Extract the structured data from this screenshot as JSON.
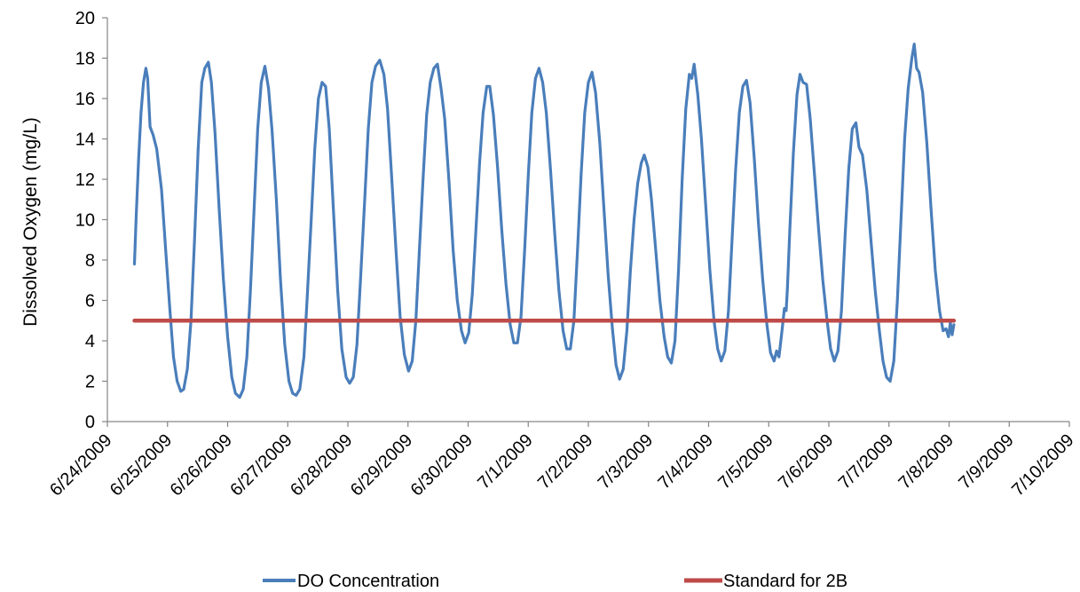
{
  "chart_data": {
    "type": "line",
    "title": "",
    "xlabel": "",
    "ylabel": "Dissolved Oxygen (mg/L)",
    "ylim": [
      0,
      20
    ],
    "y_ticks": [
      0,
      2,
      4,
      6,
      8,
      10,
      12,
      14,
      16,
      18,
      20
    ],
    "x_tick_labels": [
      "6/24/2009",
      "6/25/2009",
      "6/26/2009",
      "6/27/2009",
      "6/28/2009",
      "6/29/2009",
      "6/30/2009",
      "7/1/2009",
      "7/2/2009",
      "7/3/2009",
      "7/4/2009",
      "7/5/2009",
      "7/6/2009",
      "7/7/2009",
      "7/8/2009",
      "7/9/2009",
      "7/10/2009"
    ],
    "legend_position": "bottom",
    "series": [
      {
        "name": "DO Concentration",
        "color": "#4a7ebb",
        "x_unit": "days after 6/24/2009 00:00",
        "points": [
          [
            0.45,
            7.8
          ],
          [
            0.48,
            10.2
          ],
          [
            0.52,
            13.0
          ],
          [
            0.56,
            15.3
          ],
          [
            0.6,
            16.8
          ],
          [
            0.64,
            17.5
          ],
          [
            0.67,
            17.0
          ],
          [
            0.71,
            14.6
          ],
          [
            0.76,
            14.2
          ],
          [
            0.82,
            13.5
          ],
          [
            0.9,
            11.5
          ],
          [
            0.97,
            8.5
          ],
          [
            1.04,
            5.5
          ],
          [
            1.1,
            3.2
          ],
          [
            1.16,
            2.0
          ],
          [
            1.22,
            1.5
          ],
          [
            1.27,
            1.6
          ],
          [
            1.33,
            2.6
          ],
          [
            1.39,
            5.0
          ],
          [
            1.45,
            9.0
          ],
          [
            1.51,
            13.5
          ],
          [
            1.57,
            16.8
          ],
          [
            1.62,
            17.5
          ],
          [
            1.68,
            17.8
          ],
          [
            1.73,
            16.8
          ],
          [
            1.79,
            14.3
          ],
          [
            1.86,
            10.5
          ],
          [
            1.93,
            7.0
          ],
          [
            2.0,
            4.2
          ],
          [
            2.07,
            2.2
          ],
          [
            2.13,
            1.4
          ],
          [
            2.2,
            1.2
          ],
          [
            2.26,
            1.6
          ],
          [
            2.32,
            3.2
          ],
          [
            2.38,
            6.5
          ],
          [
            2.44,
            10.5
          ],
          [
            2.5,
            14.5
          ],
          [
            2.56,
            16.8
          ],
          [
            2.62,
            17.6
          ],
          [
            2.68,
            16.5
          ],
          [
            2.74,
            14.4
          ],
          [
            2.81,
            11.0
          ],
          [
            2.88,
            7.0
          ],
          [
            2.95,
            3.8
          ],
          [
            3.02,
            2.0
          ],
          [
            3.08,
            1.4
          ],
          [
            3.14,
            1.3
          ],
          [
            3.2,
            1.6
          ],
          [
            3.27,
            3.2
          ],
          [
            3.33,
            6.5
          ],
          [
            3.39,
            10.0
          ],
          [
            3.45,
            13.5
          ],
          [
            3.51,
            16.0
          ],
          [
            3.57,
            16.8
          ],
          [
            3.63,
            16.6
          ],
          [
            3.69,
            14.5
          ],
          [
            3.76,
            10.5
          ],
          [
            3.83,
            6.5
          ],
          [
            3.9,
            3.6
          ],
          [
            3.97,
            2.2
          ],
          [
            4.03,
            1.9
          ],
          [
            4.09,
            2.2
          ],
          [
            4.15,
            3.8
          ],
          [
            4.21,
            7.0
          ],
          [
            4.28,
            11.0
          ],
          [
            4.34,
            14.5
          ],
          [
            4.4,
            16.8
          ],
          [
            4.46,
            17.6
          ],
          [
            4.53,
            17.9
          ],
          [
            4.6,
            17.2
          ],
          [
            4.66,
            15.5
          ],
          [
            4.73,
            12.0
          ],
          [
            4.8,
            8.5
          ],
          [
            4.87,
            5.2
          ],
          [
            4.94,
            3.3
          ],
          [
            5.01,
            2.5
          ],
          [
            5.07,
            3.0
          ],
          [
            5.13,
            5.0
          ],
          [
            5.19,
            8.5
          ],
          [
            5.25,
            12.0
          ],
          [
            5.31,
            15.2
          ],
          [
            5.37,
            16.8
          ],
          [
            5.43,
            17.5
          ],
          [
            5.49,
            17.7
          ],
          [
            5.55,
            16.5
          ],
          [
            5.61,
            15.0
          ],
          [
            5.68,
            12.0
          ],
          [
            5.75,
            8.5
          ],
          [
            5.82,
            6.0
          ],
          [
            5.89,
            4.5
          ],
          [
            5.95,
            3.9
          ],
          [
            6.01,
            4.4
          ],
          [
            6.07,
            6.3
          ],
          [
            6.13,
            9.5
          ],
          [
            6.19,
            12.8
          ],
          [
            6.25,
            15.3
          ],
          [
            6.31,
            16.6
          ],
          [
            6.36,
            16.6
          ],
          [
            6.42,
            15.2
          ],
          [
            6.49,
            12.6
          ],
          [
            6.56,
            9.5
          ],
          [
            6.63,
            6.8
          ],
          [
            6.7,
            4.8
          ],
          [
            6.76,
            3.9
          ],
          [
            6.82,
            3.9
          ],
          [
            6.88,
            5.2
          ],
          [
            6.94,
            8.5
          ],
          [
            7.0,
            12.2
          ],
          [
            7.06,
            15.3
          ],
          [
            7.12,
            17.0
          ],
          [
            7.18,
            17.5
          ],
          [
            7.24,
            16.8
          ],
          [
            7.3,
            15.3
          ],
          [
            7.37,
            12.5
          ],
          [
            7.44,
            9.3
          ],
          [
            7.51,
            6.5
          ],
          [
            7.58,
            4.5
          ],
          [
            7.64,
            3.6
          ],
          [
            7.7,
            3.6
          ],
          [
            7.76,
            5.0
          ],
          [
            7.82,
            8.5
          ],
          [
            7.88,
            12.3
          ],
          [
            7.94,
            15.3
          ],
          [
            8.0,
            16.8
          ],
          [
            8.06,
            17.3
          ],
          [
            8.12,
            16.3
          ],
          [
            8.19,
            13.8
          ],
          [
            8.26,
            10.5
          ],
          [
            8.33,
            7.2
          ],
          [
            8.4,
            4.6
          ],
          [
            8.46,
            2.8
          ],
          [
            8.52,
            2.1
          ],
          [
            8.58,
            2.6
          ],
          [
            8.64,
            4.5
          ],
          [
            8.7,
            7.5
          ],
          [
            8.76,
            10.0
          ],
          [
            8.82,
            11.8
          ],
          [
            8.88,
            12.8
          ],
          [
            8.93,
            13.2
          ],
          [
            8.99,
            12.6
          ],
          [
            9.05,
            11.0
          ],
          [
            9.12,
            8.5
          ],
          [
            9.19,
            6.0
          ],
          [
            9.26,
            4.2
          ],
          [
            9.32,
            3.2
          ],
          [
            9.38,
            2.9
          ],
          [
            9.44,
            4.0
          ],
          [
            9.5,
            7.5
          ],
          [
            9.56,
            12.0
          ],
          [
            9.62,
            15.5
          ],
          [
            9.68,
            17.2
          ],
          [
            9.72,
            17.0
          ],
          [
            9.76,
            17.7
          ],
          [
            9.82,
            16.2
          ],
          [
            9.88,
            14.0
          ],
          [
            9.95,
            10.8
          ],
          [
            10.02,
            7.5
          ],
          [
            10.09,
            5.0
          ],
          [
            10.15,
            3.6
          ],
          [
            10.21,
            3.0
          ],
          [
            10.27,
            3.5
          ],
          [
            10.33,
            5.5
          ],
          [
            10.39,
            9.0
          ],
          [
            10.45,
            12.5
          ],
          [
            10.51,
            15.3
          ],
          [
            10.57,
            16.6
          ],
          [
            10.63,
            16.9
          ],
          [
            10.69,
            15.8
          ],
          [
            10.76,
            13.0
          ],
          [
            10.83,
            9.8
          ],
          [
            10.9,
            7.0
          ],
          [
            10.97,
            4.8
          ],
          [
            11.03,
            3.4
          ],
          [
            11.09,
            3.0
          ],
          [
            11.13,
            3.5
          ],
          [
            11.17,
            3.2
          ],
          [
            11.22,
            4.5
          ],
          [
            11.26,
            5.6
          ],
          [
            11.29,
            5.5
          ],
          [
            11.31,
            6.6
          ],
          [
            11.35,
            9.5
          ],
          [
            11.41,
            13.3
          ],
          [
            11.47,
            16.2
          ],
          [
            11.52,
            17.2
          ],
          [
            11.57,
            16.8
          ],
          [
            11.63,
            16.7
          ],
          [
            11.69,
            15.0
          ],
          [
            11.76,
            12.3
          ],
          [
            11.83,
            9.5
          ],
          [
            11.9,
            7.0
          ],
          [
            11.97,
            5.0
          ],
          [
            12.03,
            3.6
          ],
          [
            12.09,
            3.0
          ],
          [
            12.15,
            3.5
          ],
          [
            12.21,
            5.5
          ],
          [
            12.27,
            9.2
          ],
          [
            12.33,
            12.5
          ],
          [
            12.39,
            14.5
          ],
          [
            12.45,
            14.8
          ],
          [
            12.5,
            13.6
          ],
          [
            12.56,
            13.2
          ],
          [
            12.63,
            11.5
          ],
          [
            12.7,
            9.0
          ],
          [
            12.77,
            6.5
          ],
          [
            12.84,
            4.5
          ],
          [
            12.9,
            3.0
          ],
          [
            12.96,
            2.2
          ],
          [
            13.02,
            2.0
          ],
          [
            13.08,
            3.0
          ],
          [
            13.14,
            6.0
          ],
          [
            13.2,
            10.0
          ],
          [
            13.26,
            14.0
          ],
          [
            13.32,
            16.5
          ],
          [
            13.38,
            18.0
          ],
          [
            13.42,
            18.7
          ],
          [
            13.46,
            17.5
          ],
          [
            13.5,
            17.3
          ],
          [
            13.56,
            16.3
          ],
          [
            13.63,
            13.8
          ],
          [
            13.7,
            10.5
          ],
          [
            13.77,
            7.5
          ],
          [
            13.84,
            5.5
          ],
          [
            13.9,
            4.5
          ],
          [
            13.95,
            4.6
          ],
          [
            13.99,
            4.2
          ],
          [
            14.02,
            4.9
          ],
          [
            14.05,
            4.3
          ],
          [
            14.08,
            4.8
          ]
        ]
      },
      {
        "name": "Standard for 2B",
        "color": "#be4b48",
        "x_unit": "days after 6/24/2009 00:00",
        "points": [
          [
            0.45,
            5.0
          ],
          [
            14.08,
            5.0
          ]
        ]
      }
    ]
  }
}
